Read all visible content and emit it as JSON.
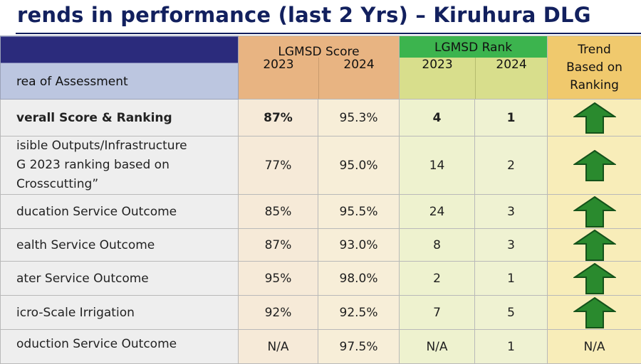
{
  "title": "rends in performance (last 2 Yrs) – Kiruhura DLG",
  "headers": {
    "area": "rea of Assessment",
    "score_group": "LGMSD Score",
    "rank_group": "LGMSD Rank",
    "trend_line1": "Trend",
    "trend_line2": "Based on",
    "trend_line3": "Ranking",
    "years": [
      "2023",
      "2024",
      "2023",
      "2024"
    ]
  },
  "rows": [
    {
      "area": "verall Score & Ranking",
      "score_2023": "87%",
      "score_2024": "95.3%",
      "rank_2023": "4",
      "rank_2024": "1",
      "trend": "up-arrow-icon"
    },
    {
      "area_lines": [
        "isible Outputs/Infrastructure",
        "G 2023 ranking based on",
        "Crosscutting”"
      ],
      "score_2023": "77%",
      "score_2024": "95.0%",
      "rank_2023": "14",
      "rank_2024": "2",
      "trend": "up-arrow-icon"
    },
    {
      "area": "ducation Service Outcome",
      "score_2023": "85%",
      "score_2024": "95.5%",
      "rank_2023": "24",
      "rank_2024": "3",
      "trend": "up-arrow-icon"
    },
    {
      "area": "ealth Service Outcome",
      "score_2023": "87%",
      "score_2024": "93.0%",
      "rank_2023": "8",
      "rank_2024": "3",
      "trend": "up-arrow-icon"
    },
    {
      "area": "ater Service Outcome",
      "score_2023": "95%",
      "score_2024": "98.0%",
      "rank_2023": "2",
      "rank_2024": "1",
      "trend": "up-arrow-icon"
    },
    {
      "area": "icro-Scale Irrigation",
      "score_2023": "92%",
      "score_2024": "92.5%",
      "rank_2023": "7",
      "rank_2024": "5",
      "trend": "up-arrow-icon"
    },
    {
      "area": "oduction Service Outcome",
      "score_2023": "N/A",
      "score_2024": "97.5%",
      "rank_2023": "N/A",
      "rank_2024": "1",
      "trend_text": "N/A"
    }
  ],
  "colors": {
    "title": "#12205e",
    "arrow_fill": "#2a8a2e",
    "arrow_stroke": "#14521a",
    "header_score": "#e8b482",
    "header_rank": "#3cb44e",
    "header_trend": "#f0c96d"
  }
}
